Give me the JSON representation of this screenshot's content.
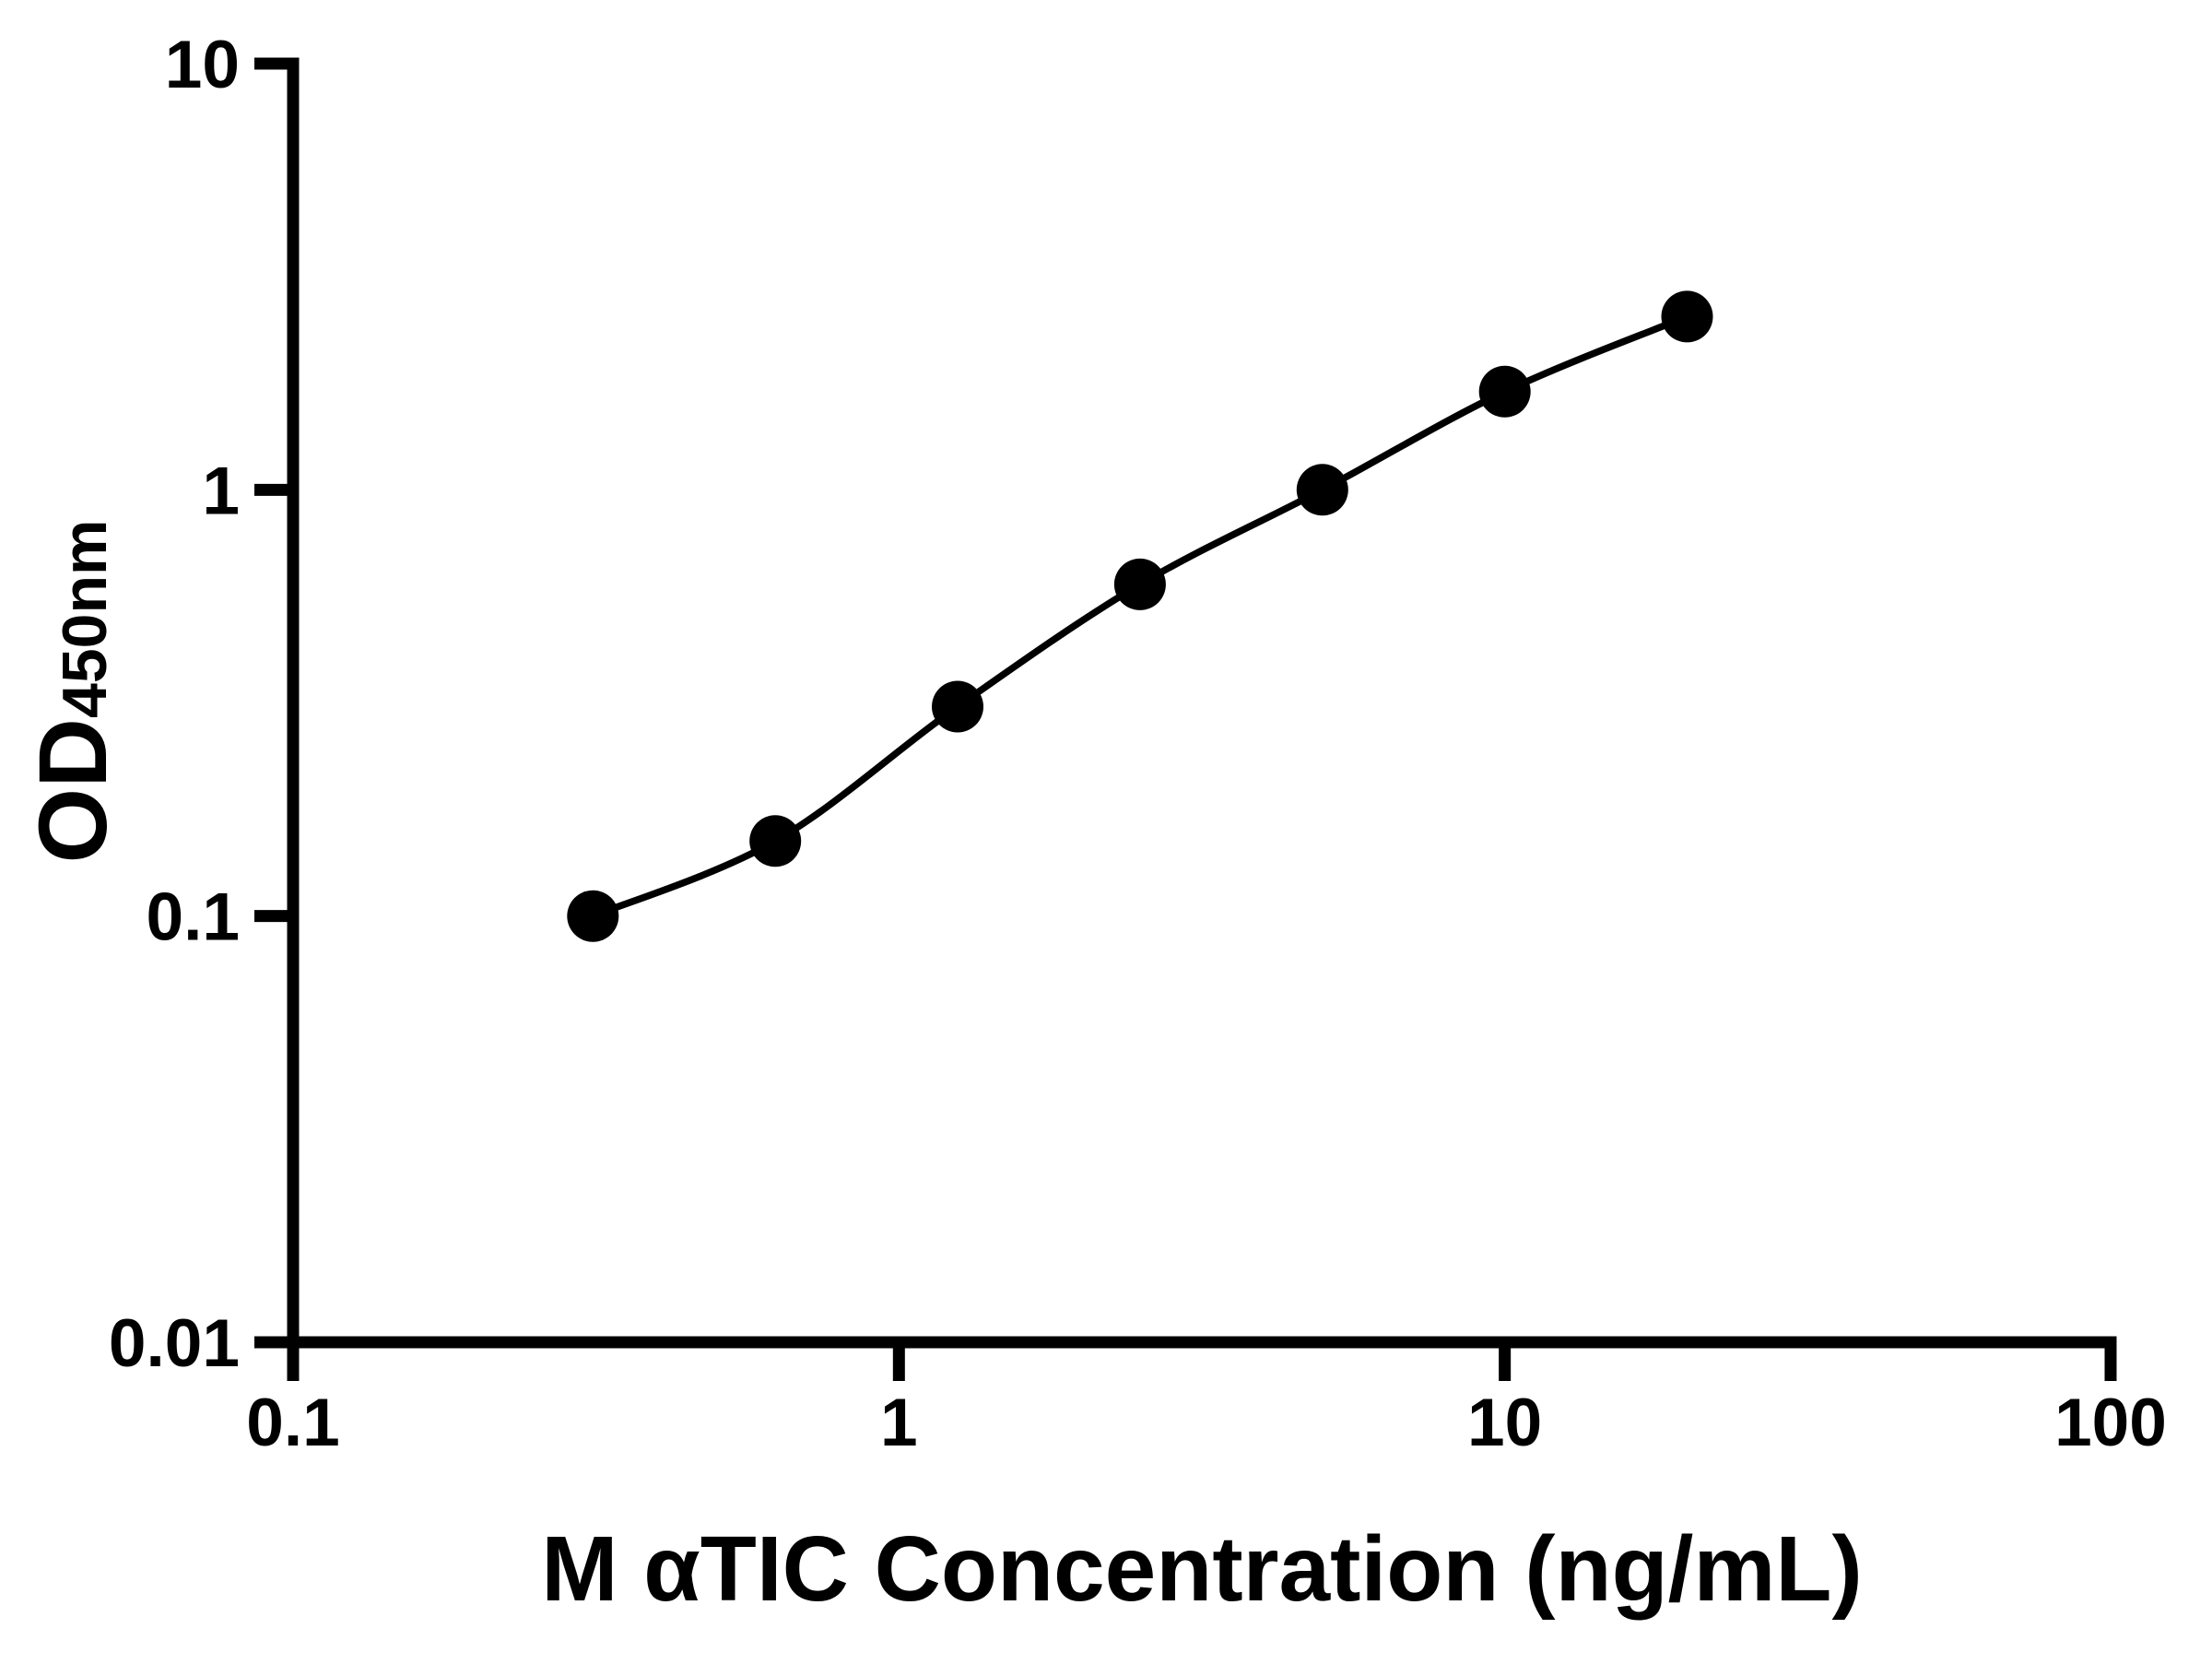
{
  "chart_data": {
    "type": "line",
    "title": "",
    "xlabel": "M αTIC Concentration (ng/mL)",
    "ylabel": "OD450nm",
    "ylabel_main": "OD",
    "ylabel_sub": "450nm",
    "x_scale": "log",
    "y_scale": "log",
    "xlim": [
      0.1,
      100
    ],
    "ylim": [
      0.01,
      10
    ],
    "grid": false,
    "legend": "none",
    "x_ticks": [
      {
        "value": 0.1,
        "label": "0.1"
      },
      {
        "value": 1,
        "label": "1"
      },
      {
        "value": 10,
        "label": "10"
      },
      {
        "value": 100,
        "label": "100"
      }
    ],
    "y_ticks": [
      {
        "value": 10,
        "label": "10"
      },
      {
        "value": 1,
        "label": "1"
      },
      {
        "value": 0.1,
        "label": "0.1"
      },
      {
        "value": 0.01,
        "label": "0.01"
      }
    ],
    "series": [
      {
        "marker": "filled-circle",
        "line": "smooth",
        "color": "#000000",
        "x": [
          0.3125,
          0.625,
          1.25,
          2.5,
          5,
          10,
          20
        ],
        "y": [
          0.1,
          0.15,
          0.31,
          0.6,
          1.0,
          1.7,
          2.55
        ]
      }
    ]
  },
  "colors": {
    "foreground": "#000000",
    "background": "#ffffff"
  }
}
